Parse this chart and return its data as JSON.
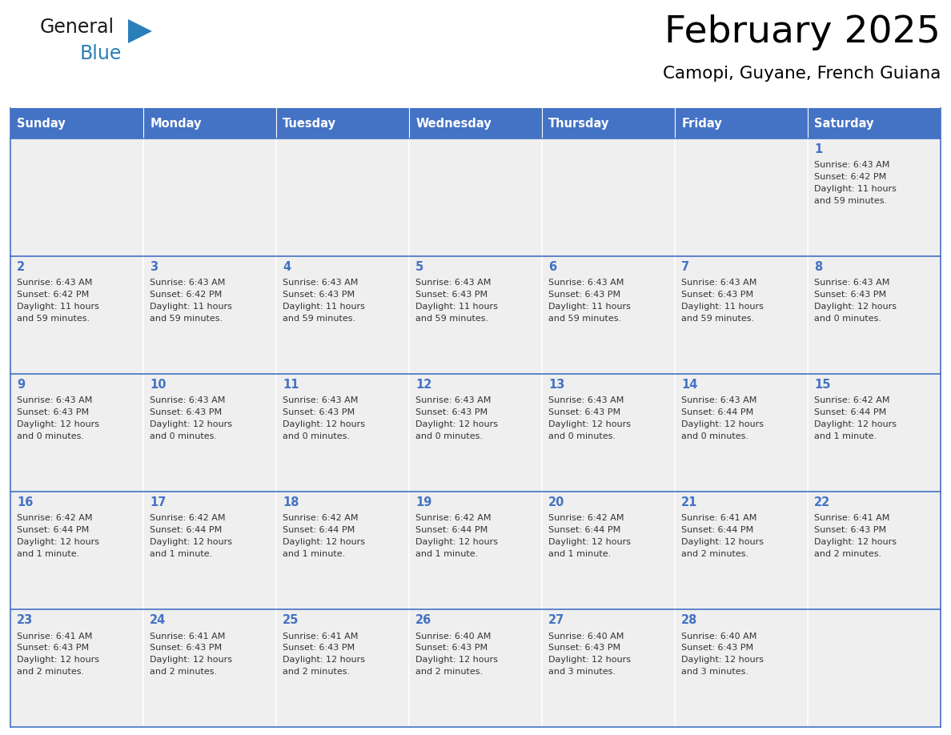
{
  "title": "February 2025",
  "subtitle": "Camopi, Guyane, French Guiana",
  "header_color": "#4472C4",
  "header_text_color": "#FFFFFF",
  "cell_bg_color": "#EFEFEF",
  "cell_border_color": "#FFFFFF",
  "row_divider_color": "#4472C4",
  "day_number_color": "#4472C4",
  "text_color": "#333333",
  "days_of_week": [
    "Sunday",
    "Monday",
    "Tuesday",
    "Wednesday",
    "Thursday",
    "Friday",
    "Saturday"
  ],
  "calendar_data": [
    [
      null,
      null,
      null,
      null,
      null,
      null,
      {
        "day": 1,
        "sunrise": "6:43 AM",
        "sunset": "6:42 PM",
        "daylight": "11 hours",
        "daylight2": "and 59 minutes."
      }
    ],
    [
      {
        "day": 2,
        "sunrise": "6:43 AM",
        "sunset": "6:42 PM",
        "daylight": "11 hours",
        "daylight2": "and 59 minutes."
      },
      {
        "day": 3,
        "sunrise": "6:43 AM",
        "sunset": "6:42 PM",
        "daylight": "11 hours",
        "daylight2": "and 59 minutes."
      },
      {
        "day": 4,
        "sunrise": "6:43 AM",
        "sunset": "6:43 PM",
        "daylight": "11 hours",
        "daylight2": "and 59 minutes."
      },
      {
        "day": 5,
        "sunrise": "6:43 AM",
        "sunset": "6:43 PM",
        "daylight": "11 hours",
        "daylight2": "and 59 minutes."
      },
      {
        "day": 6,
        "sunrise": "6:43 AM",
        "sunset": "6:43 PM",
        "daylight": "11 hours",
        "daylight2": "and 59 minutes."
      },
      {
        "day": 7,
        "sunrise": "6:43 AM",
        "sunset": "6:43 PM",
        "daylight": "11 hours",
        "daylight2": "and 59 minutes."
      },
      {
        "day": 8,
        "sunrise": "6:43 AM",
        "sunset": "6:43 PM",
        "daylight": "12 hours",
        "daylight2": "and 0 minutes."
      }
    ],
    [
      {
        "day": 9,
        "sunrise": "6:43 AM",
        "sunset": "6:43 PM",
        "daylight": "12 hours",
        "daylight2": "and 0 minutes."
      },
      {
        "day": 10,
        "sunrise": "6:43 AM",
        "sunset": "6:43 PM",
        "daylight": "12 hours",
        "daylight2": "and 0 minutes."
      },
      {
        "day": 11,
        "sunrise": "6:43 AM",
        "sunset": "6:43 PM",
        "daylight": "12 hours",
        "daylight2": "and 0 minutes."
      },
      {
        "day": 12,
        "sunrise": "6:43 AM",
        "sunset": "6:43 PM",
        "daylight": "12 hours",
        "daylight2": "and 0 minutes."
      },
      {
        "day": 13,
        "sunrise": "6:43 AM",
        "sunset": "6:43 PM",
        "daylight": "12 hours",
        "daylight2": "and 0 minutes."
      },
      {
        "day": 14,
        "sunrise": "6:43 AM",
        "sunset": "6:44 PM",
        "daylight": "12 hours",
        "daylight2": "and 0 minutes."
      },
      {
        "day": 15,
        "sunrise": "6:42 AM",
        "sunset": "6:44 PM",
        "daylight": "12 hours",
        "daylight2": "and 1 minute."
      }
    ],
    [
      {
        "day": 16,
        "sunrise": "6:42 AM",
        "sunset": "6:44 PM",
        "daylight": "12 hours",
        "daylight2": "and 1 minute."
      },
      {
        "day": 17,
        "sunrise": "6:42 AM",
        "sunset": "6:44 PM",
        "daylight": "12 hours",
        "daylight2": "and 1 minute."
      },
      {
        "day": 18,
        "sunrise": "6:42 AM",
        "sunset": "6:44 PM",
        "daylight": "12 hours",
        "daylight2": "and 1 minute."
      },
      {
        "day": 19,
        "sunrise": "6:42 AM",
        "sunset": "6:44 PM",
        "daylight": "12 hours",
        "daylight2": "and 1 minute."
      },
      {
        "day": 20,
        "sunrise": "6:42 AM",
        "sunset": "6:44 PM",
        "daylight": "12 hours",
        "daylight2": "and 1 minute."
      },
      {
        "day": 21,
        "sunrise": "6:41 AM",
        "sunset": "6:44 PM",
        "daylight": "12 hours",
        "daylight2": "and 2 minutes."
      },
      {
        "day": 22,
        "sunrise": "6:41 AM",
        "sunset": "6:43 PM",
        "daylight": "12 hours",
        "daylight2": "and 2 minutes."
      }
    ],
    [
      {
        "day": 23,
        "sunrise": "6:41 AM",
        "sunset": "6:43 PM",
        "daylight": "12 hours",
        "daylight2": "and 2 minutes."
      },
      {
        "day": 24,
        "sunrise": "6:41 AM",
        "sunset": "6:43 PM",
        "daylight": "12 hours",
        "daylight2": "and 2 minutes."
      },
      {
        "day": 25,
        "sunrise": "6:41 AM",
        "sunset": "6:43 PM",
        "daylight": "12 hours",
        "daylight2": "and 2 minutes."
      },
      {
        "day": 26,
        "sunrise": "6:40 AM",
        "sunset": "6:43 PM",
        "daylight": "12 hours",
        "daylight2": "and 2 minutes."
      },
      {
        "day": 27,
        "sunrise": "6:40 AM",
        "sunset": "6:43 PM",
        "daylight": "12 hours",
        "daylight2": "and 3 minutes."
      },
      {
        "day": 28,
        "sunrise": "6:40 AM",
        "sunset": "6:43 PM",
        "daylight": "12 hours",
        "daylight2": "and 3 minutes."
      },
      null
    ]
  ],
  "logo_text1": "General",
  "logo_text2": "Blue",
  "logo_color1": "#1a1a1a",
  "logo_color2": "#2980b9",
  "logo_triangle_color": "#2980b9",
  "fig_width": 11.88,
  "fig_height": 9.18,
  "dpi": 100
}
